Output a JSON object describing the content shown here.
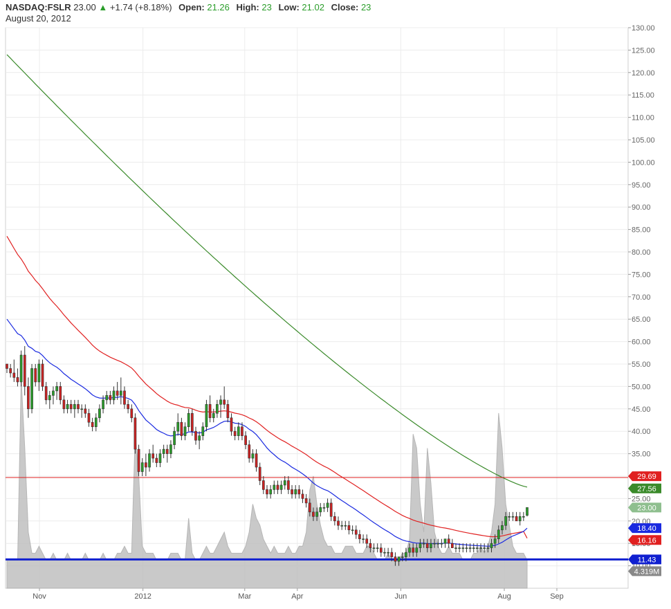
{
  "header": {
    "symbol": "NASDAQ:FSLR",
    "last": "23.00",
    "change": "+1.74 (+8.18%)",
    "open_label": "Open:",
    "open": "21.26",
    "high_label": "High:",
    "high": "23",
    "low_label": "Low:",
    "low": "21.02",
    "close_label": "Close:",
    "close": "23",
    "date": "August 20, 2012"
  },
  "colors": {
    "up": "#2a9d2a",
    "down": "#cc2222",
    "ma_long": "#3a8a2a",
    "ma_mid": "#e02020",
    "ma_short": "#1a2ae0",
    "level_red": "#e02020",
    "level_blue": "#1020d0",
    "volume": "#c0c0c0"
  },
  "chart_data": {
    "type": "candlestick",
    "ylim": [
      5,
      130
    ],
    "y_ticks": [
      "130.00",
      "125.00",
      "120.00",
      "115.00",
      "110.00",
      "105.00",
      "100.00",
      "95.00",
      "90.00",
      "85.00",
      "80.00",
      "75.00",
      "70.00",
      "65.00",
      "60.00",
      "55.00",
      "50.00",
      "45.00",
      "40.00",
      "35.00",
      "30.00",
      "25.00",
      "20.00",
      "15.00",
      "10.00"
    ],
    "x_labels": [
      {
        "label": "Nov",
        "day": 8
      },
      {
        "label": "2012",
        "day": 69
      },
      {
        "label": "Mar",
        "day": 129
      },
      {
        "label": "Apr",
        "day": 160
      },
      {
        "label": "Jun",
        "day": 221
      },
      {
        "label": "Aug",
        "day": 282
      },
      {
        "label": "Sep",
        "day": 313
      }
    ],
    "x_range_days": [
      -12,
      355
    ],
    "candles": [
      [
        55,
        55,
        53,
        54
      ],
      [
        54,
        55,
        52,
        53
      ],
      [
        53,
        56,
        51,
        52
      ],
      [
        52,
        54,
        50,
        51
      ],
      [
        51,
        58,
        50,
        57
      ],
      [
        57,
        59,
        48,
        50
      ],
      [
        50,
        52,
        43,
        45
      ],
      [
        45,
        55,
        44,
        54
      ],
      [
        54,
        55,
        50,
        51
      ],
      [
        51,
        56,
        49,
        55
      ],
      [
        55,
        56,
        49,
        50
      ],
      [
        50,
        51,
        46,
        47
      ],
      [
        47,
        49,
        45,
        48
      ],
      [
        48,
        50,
        46,
        49
      ],
      [
        49,
        51,
        47,
        50
      ],
      [
        50,
        51,
        46,
        47
      ],
      [
        47,
        48,
        44,
        45
      ],
      [
        45,
        47,
        44,
        46
      ],
      [
        46,
        47,
        44,
        45
      ],
      [
        45,
        47,
        43,
        46
      ],
      [
        46,
        47,
        44,
        45
      ],
      [
        45,
        46,
        43,
        45
      ],
      [
        45,
        46,
        43,
        44
      ],
      [
        44,
        45,
        41,
        42
      ],
      [
        42,
        43,
        40,
        41
      ],
      [
        41,
        44,
        40,
        43
      ],
      [
        43,
        46,
        42,
        45
      ],
      [
        45,
        48,
        44,
        47
      ],
      [
        47,
        49,
        46,
        48
      ],
      [
        48,
        49,
        46,
        47
      ],
      [
        47,
        50,
        46,
        49
      ],
      [
        49,
        51,
        47,
        48
      ],
      [
        48,
        52,
        46,
        49
      ],
      [
        49,
        50,
        45,
        46
      ],
      [
        46,
        47,
        44,
        45
      ],
      [
        45,
        46,
        42,
        43
      ],
      [
        43,
        44,
        35,
        36
      ],
      [
        36,
        37,
        30,
        31
      ],
      [
        31,
        34,
        30,
        33
      ],
      [
        33,
        35,
        30,
        32
      ],
      [
        32,
        36,
        31,
        35
      ],
      [
        35,
        37,
        33,
        34
      ],
      [
        34,
        35,
        32,
        33
      ],
      [
        33,
        36,
        32,
        35
      ],
      [
        35,
        37,
        34,
        36
      ],
      [
        36,
        37,
        33,
        35
      ],
      [
        35,
        38,
        34,
        37
      ],
      [
        37,
        41,
        36,
        40
      ],
      [
        40,
        44,
        39,
        42
      ],
      [
        42,
        43,
        38,
        39
      ],
      [
        39,
        42,
        38,
        41
      ],
      [
        41,
        45,
        40,
        44
      ],
      [
        44,
        45,
        39,
        40
      ],
      [
        40,
        41,
        37,
        38
      ],
      [
        38,
        40,
        36,
        39
      ],
      [
        39,
        42,
        38,
        41
      ],
      [
        41,
        47,
        40,
        46
      ],
      [
        46,
        48,
        42,
        43
      ],
      [
        43,
        45,
        42,
        44
      ],
      [
        44,
        47,
        43,
        46
      ],
      [
        46,
        48,
        43,
        47
      ],
      [
        47,
        50,
        45,
        46
      ],
      [
        46,
        47,
        42,
        43
      ],
      [
        43,
        44,
        39,
        40
      ],
      [
        40,
        41,
        38,
        39
      ],
      [
        39,
        42,
        38,
        41
      ],
      [
        41,
        42,
        38,
        39
      ],
      [
        39,
        40,
        36,
        37
      ],
      [
        37,
        38,
        33,
        34
      ],
      [
        34,
        36,
        33,
        35
      ],
      [
        35,
        36,
        31,
        32
      ],
      [
        32,
        33,
        28,
        29
      ],
      [
        29,
        30,
        26,
        27
      ],
      [
        27,
        28,
        25,
        26
      ],
      [
        26,
        28,
        25,
        27
      ],
      [
        27,
        29,
        26,
        28
      ],
      [
        28,
        29,
        26,
        27
      ],
      [
        27,
        29,
        26,
        28
      ],
      [
        28,
        30,
        27,
        29
      ],
      [
        29,
        30,
        26,
        27
      ],
      [
        27,
        28,
        25,
        26
      ],
      [
        26,
        28,
        25,
        27
      ],
      [
        27,
        28,
        25,
        26
      ],
      [
        26,
        27,
        24,
        25
      ],
      [
        25,
        26,
        23,
        24
      ],
      [
        24,
        25,
        21,
        22
      ],
      [
        22,
        23,
        20,
        21
      ],
      [
        21,
        23,
        20,
        22
      ],
      [
        22,
        24,
        21,
        23
      ],
      [
        23,
        24,
        22,
        23
      ],
      [
        23,
        25,
        22,
        24
      ],
      [
        24,
        25,
        20,
        21
      ],
      [
        21,
        22,
        19,
        20
      ],
      [
        20,
        21,
        18,
        19
      ],
      [
        19,
        20,
        18,
        19
      ],
      [
        19,
        20,
        18,
        19
      ],
      [
        19,
        20,
        17,
        18
      ],
      [
        18,
        19,
        17,
        18
      ],
      [
        18,
        19,
        16,
        17
      ],
      [
        17,
        18,
        15,
        16
      ],
      [
        16,
        17,
        15,
        16
      ],
      [
        16,
        17,
        14,
        15
      ],
      [
        15,
        16,
        13,
        14
      ],
      [
        14,
        15,
        13,
        14
      ],
      [
        14,
        15,
        13,
        14
      ],
      [
        14,
        15,
        12,
        13
      ],
      [
        13,
        14,
        12,
        13
      ],
      [
        13,
        14,
        12,
        13
      ],
      [
        13,
        14,
        11,
        12
      ],
      [
        12,
        13,
        10,
        11
      ],
      [
        11,
        12,
        10,
        12
      ],
      [
        12,
        13,
        11,
        12
      ],
      [
        12,
        14,
        11,
        13
      ],
      [
        13,
        15,
        12,
        14
      ],
      [
        14,
        15,
        12,
        13
      ],
      [
        13,
        15,
        12,
        14
      ],
      [
        14,
        16,
        13,
        15
      ],
      [
        15,
        16,
        14,
        15
      ],
      [
        15,
        16,
        13,
        14
      ],
      [
        14,
        16,
        13,
        15
      ],
      [
        15,
        16,
        14,
        15
      ],
      [
        15,
        16,
        14,
        15
      ],
      [
        15,
        16,
        14,
        15
      ],
      [
        15,
        16,
        14,
        16
      ],
      [
        16,
        17,
        14,
        15
      ],
      [
        15,
        16,
        14,
        14
      ],
      [
        14,
        15,
        13,
        14
      ],
      [
        14,
        15,
        13,
        14
      ],
      [
        14,
        15,
        13,
        14
      ],
      [
        14,
        15,
        13,
        14
      ],
      [
        14,
        15,
        13,
        14
      ],
      [
        14,
        15,
        13,
        14
      ],
      [
        14,
        15,
        13,
        14
      ],
      [
        14,
        15,
        13,
        14
      ],
      [
        14,
        15,
        13,
        14
      ],
      [
        14,
        15,
        13,
        14
      ],
      [
        14,
        16,
        13,
        15
      ],
      [
        15,
        17,
        14,
        16
      ],
      [
        16,
        19,
        15,
        18
      ],
      [
        18,
        20,
        17,
        19
      ],
      [
        19,
        22,
        18,
        21
      ],
      [
        21,
        22,
        20,
        21
      ],
      [
        21,
        22,
        20,
        21
      ],
      [
        21,
        22,
        20,
        20
      ],
      [
        20,
        22,
        19,
        21
      ],
      [
        21,
        22,
        20,
        21
      ],
      [
        21.26,
        23,
        21.02,
        23
      ]
    ],
    "volume": [
      4,
      4,
      4,
      4,
      30,
      20,
      8,
      5,
      5,
      6,
      5,
      4,
      4,
      5,
      4,
      4,
      4,
      5,
      4,
      4,
      4,
      4,
      5,
      4,
      4,
      4,
      4,
      5,
      4,
      4,
      4,
      5,
      5,
      6,
      5,
      5,
      22,
      16,
      6,
      5,
      5,
      5,
      4,
      4,
      4,
      4,
      5,
      5,
      5,
      4,
      4,
      10,
      5,
      4,
      4,
      5,
      6,
      5,
      5,
      6,
      7,
      8,
      6,
      5,
      5,
      5,
      5,
      6,
      8,
      12,
      10,
      9,
      7,
      6,
      5,
      6,
      5,
      5,
      5,
      6,
      5,
      5,
      6,
      6,
      8,
      14,
      16,
      12,
      9,
      7,
      6,
      6,
      5,
      5,
      5,
      6,
      6,
      6,
      5,
      5,
      5,
      6,
      6,
      5,
      4,
      4,
      4,
      5,
      4,
      4,
      4,
      5,
      5,
      7,
      22,
      20,
      12,
      8,
      20,
      15,
      8,
      6,
      5,
      5,
      6,
      5,
      5,
      5,
      4,
      4,
      4,
      5,
      5,
      6,
      5,
      6,
      8,
      12,
      25,
      20,
      12,
      9,
      6,
      5,
      5,
      5,
      4,
      4,
      4,
      4
    ],
    "volume_ylim": [
      0,
      80
    ],
    "moving_averages": [
      {
        "label": "27.56",
        "color": "#3a8a2a",
        "start": 124,
        "end": 27.56
      },
      {
        "label": "16.16",
        "color": "#e02020",
        "start": 83.5,
        "end": 16.16
      },
      {
        "label": "18.40",
        "color": "#1a2ae0",
        "start": 65,
        "end": 18.4
      }
    ],
    "levels": [
      {
        "label": "29.69",
        "value": 29.69,
        "color": "#e02020"
      },
      {
        "label": "11.43",
        "value": 11.43,
        "color": "#1020d0"
      }
    ],
    "price_tag": {
      "label": "23.00",
      "value": 23.0
    },
    "volume_tag": {
      "label": "4.319M"
    }
  }
}
